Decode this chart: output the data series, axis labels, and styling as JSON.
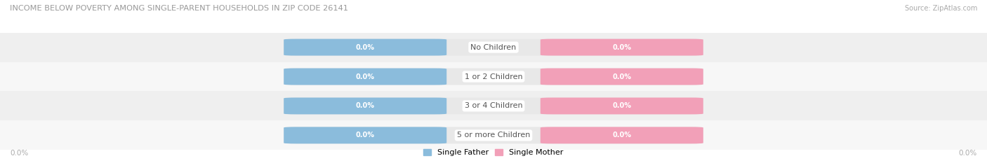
{
  "title": "INCOME BELOW POVERTY AMONG SINGLE-PARENT HOUSEHOLDS IN ZIP CODE 26141",
  "source_text": "Source: ZipAtlas.com",
  "categories": [
    "No Children",
    "1 or 2 Children",
    "3 or 4 Children",
    "5 or more Children"
  ],
  "father_color": "#8BBCDC",
  "mother_color": "#F2A0B8",
  "row_colors": [
    "#EFEFEF",
    "#F7F7F7",
    "#EFEFEF",
    "#F7F7F7"
  ],
  "title_color": "#999999",
  "source_color": "#AAAAAA",
  "axis_label_color": "#AAAAAA",
  "center_label_color": "#555555",
  "value_text_color": "#FFFFFF",
  "x_left_label": "0.0%",
  "x_right_label": "0.0%",
  "legend_father": "Single Father",
  "legend_mother": "Single Mother",
  "figsize": [
    14.06,
    2.33
  ],
  "dpi": 100
}
